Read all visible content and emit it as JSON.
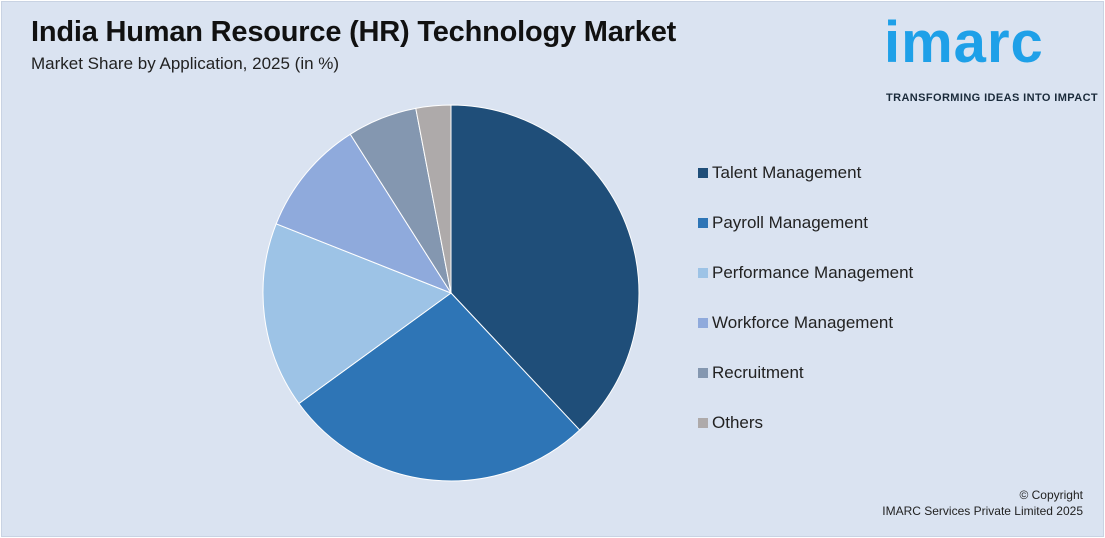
{
  "header": {
    "title": "India Human Resource (HR) Technology Market",
    "subtitle": "Market Share by Application, 2025 (in %)"
  },
  "logo": {
    "wordmark": "imarc",
    "tagline": "TRANSFORMING IDEAS INTO IMPACT",
    "color": "#1ea0e8"
  },
  "chart_data": {
    "type": "pie",
    "title": "India Human Resource (HR) Technology Market",
    "subtitle": "Market Share by Application, 2025 (in %)",
    "legend_position": "right",
    "slices": [
      {
        "label": "Talent Management",
        "value": 38,
        "color": "#1f4e79"
      },
      {
        "label": "Payroll Management",
        "value": 27,
        "color": "#2e75b6"
      },
      {
        "label": "Performance Management",
        "value": 16,
        "color": "#9dc3e6"
      },
      {
        "label": "Workforce Management",
        "value": 10,
        "color": "#8faadc"
      },
      {
        "label": "Recruitment",
        "value": 6,
        "color": "#8497b0"
      },
      {
        "label": "Others",
        "value": 3,
        "color": "#aeaaaa"
      }
    ]
  },
  "footer": {
    "copyright_line1": "© Copyright",
    "copyright_line2": "IMARC Services Private Limited 2025"
  }
}
